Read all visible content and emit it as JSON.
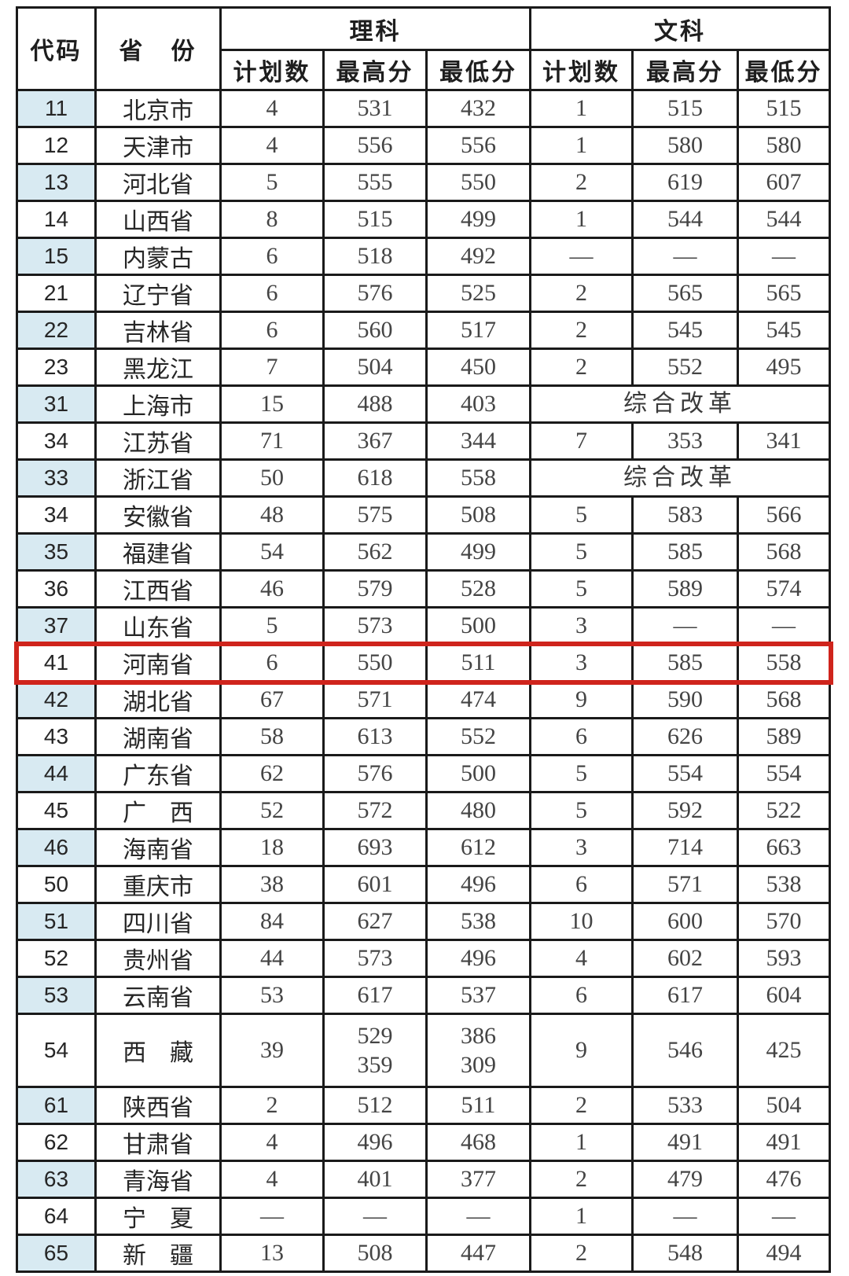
{
  "table": {
    "header": {
      "code": "代码",
      "province": "省　份",
      "science": "理科",
      "arts": "文科",
      "plan": "计划数",
      "max": "最高分",
      "min": "最低分"
    },
    "colors": {
      "stripe": "#d8eaf2",
      "highlight": "#cf241c",
      "border": "#1a1a1a"
    },
    "rows": [
      {
        "code": "11",
        "province": "北京市",
        "shade": true,
        "sci": [
          "4",
          "531",
          "432"
        ],
        "arts": [
          "1",
          "515",
          "515"
        ]
      },
      {
        "code": "12",
        "province": "天津市",
        "shade": false,
        "sci": [
          "4",
          "556",
          "556"
        ],
        "arts": [
          "1",
          "580",
          "580"
        ]
      },
      {
        "code": "13",
        "province": "河北省",
        "shade": true,
        "sci": [
          "5",
          "555",
          "550"
        ],
        "arts": [
          "2",
          "619",
          "607"
        ]
      },
      {
        "code": "14",
        "province": "山西省",
        "shade": false,
        "sci": [
          "8",
          "515",
          "499"
        ],
        "arts": [
          "1",
          "544",
          "544"
        ]
      },
      {
        "code": "15",
        "province": "内蒙古",
        "shade": true,
        "sci": [
          "6",
          "518",
          "492"
        ],
        "arts": [
          "—",
          "—",
          "—"
        ]
      },
      {
        "code": "21",
        "province": "辽宁省",
        "shade": false,
        "sci": [
          "6",
          "576",
          "525"
        ],
        "arts": [
          "2",
          "565",
          "565"
        ]
      },
      {
        "code": "22",
        "province": "吉林省",
        "shade": true,
        "sci": [
          "6",
          "560",
          "517"
        ],
        "arts": [
          "2",
          "545",
          "545"
        ]
      },
      {
        "code": "23",
        "province": "黑龙江",
        "shade": false,
        "sci": [
          "7",
          "504",
          "450"
        ],
        "arts": [
          "2",
          "552",
          "495"
        ]
      },
      {
        "code": "31",
        "province": "上海市",
        "shade": true,
        "sci": [
          "15",
          "488",
          "403"
        ],
        "arts_merged": "综合改革"
      },
      {
        "code": "34",
        "province": "江苏省",
        "shade": false,
        "sci": [
          "71",
          "367",
          "344"
        ],
        "arts": [
          "7",
          "353",
          "341"
        ]
      },
      {
        "code": "33",
        "province": "浙江省",
        "shade": true,
        "sci": [
          "50",
          "618",
          "558"
        ],
        "arts_merged": "综合改革"
      },
      {
        "code": "34",
        "province": "安徽省",
        "shade": false,
        "sci": [
          "48",
          "575",
          "508"
        ],
        "arts": [
          "5",
          "583",
          "566"
        ]
      },
      {
        "code": "35",
        "province": "福建省",
        "shade": true,
        "sci": [
          "54",
          "562",
          "499"
        ],
        "arts": [
          "5",
          "585",
          "568"
        ]
      },
      {
        "code": "36",
        "province": "江西省",
        "shade": false,
        "sci": [
          "46",
          "579",
          "528"
        ],
        "arts": [
          "5",
          "589",
          "574"
        ]
      },
      {
        "code": "37",
        "province": "山东省",
        "shade": true,
        "sci": [
          "5",
          "573",
          "500"
        ],
        "arts": [
          "3",
          "—",
          "—"
        ]
      },
      {
        "code": "41",
        "province": "河南省",
        "shade": false,
        "highlight": true,
        "sci": [
          "6",
          "550",
          "511"
        ],
        "arts": [
          "3",
          "585",
          "558"
        ]
      },
      {
        "code": "42",
        "province": "湖北省",
        "shade": true,
        "sci": [
          "67",
          "571",
          "474"
        ],
        "arts": [
          "9",
          "590",
          "568"
        ]
      },
      {
        "code": "43",
        "province": "湖南省",
        "shade": false,
        "sci": [
          "58",
          "613",
          "552"
        ],
        "arts": [
          "6",
          "626",
          "589"
        ]
      },
      {
        "code": "44",
        "province": "广东省",
        "shade": true,
        "sci": [
          "62",
          "576",
          "500"
        ],
        "arts": [
          "5",
          "554",
          "554"
        ]
      },
      {
        "code": "45",
        "province": "广　西",
        "shade": false,
        "sci": [
          "52",
          "572",
          "480"
        ],
        "arts": [
          "5",
          "592",
          "522"
        ]
      },
      {
        "code": "46",
        "province": "海南省",
        "shade": true,
        "sci": [
          "18",
          "693",
          "612"
        ],
        "arts": [
          "3",
          "714",
          "663"
        ]
      },
      {
        "code": "50",
        "province": "重庆市",
        "shade": false,
        "sci": [
          "38",
          "601",
          "496"
        ],
        "arts": [
          "6",
          "571",
          "538"
        ]
      },
      {
        "code": "51",
        "province": "四川省",
        "shade": true,
        "sci": [
          "84",
          "627",
          "538"
        ],
        "arts": [
          "10",
          "600",
          "570"
        ]
      },
      {
        "code": "52",
        "province": "贵州省",
        "shade": false,
        "sci": [
          "44",
          "573",
          "496"
        ],
        "arts": [
          "4",
          "602",
          "593"
        ]
      },
      {
        "code": "53",
        "province": "云南省",
        "shade": true,
        "sci": [
          "53",
          "617",
          "537"
        ],
        "arts": [
          "6",
          "617",
          "604"
        ]
      },
      {
        "code": "54",
        "province": "西　藏",
        "shade": false,
        "tall": true,
        "sci": [
          "39",
          "529\n359",
          "386\n309"
        ],
        "arts": [
          "9",
          "546",
          "425"
        ]
      },
      {
        "code": "61",
        "province": "陕西省",
        "shade": true,
        "sci": [
          "2",
          "512",
          "511"
        ],
        "arts": [
          "2",
          "533",
          "504"
        ]
      },
      {
        "code": "62",
        "province": "甘肃省",
        "shade": false,
        "sci": [
          "4",
          "496",
          "468"
        ],
        "arts": [
          "1",
          "491",
          "491"
        ]
      },
      {
        "code": "63",
        "province": "青海省",
        "shade": true,
        "sci": [
          "4",
          "401",
          "377"
        ],
        "arts": [
          "2",
          "479",
          "476"
        ]
      },
      {
        "code": "64",
        "province": "宁　夏",
        "shade": false,
        "sci": [
          "—",
          "—",
          "—"
        ],
        "arts": [
          "1",
          "—",
          "—"
        ]
      },
      {
        "code": "65",
        "province": "新　疆",
        "shade": true,
        "sci": [
          "13",
          "508",
          "447"
        ],
        "arts": [
          "2",
          "548",
          "494"
        ]
      }
    ]
  }
}
